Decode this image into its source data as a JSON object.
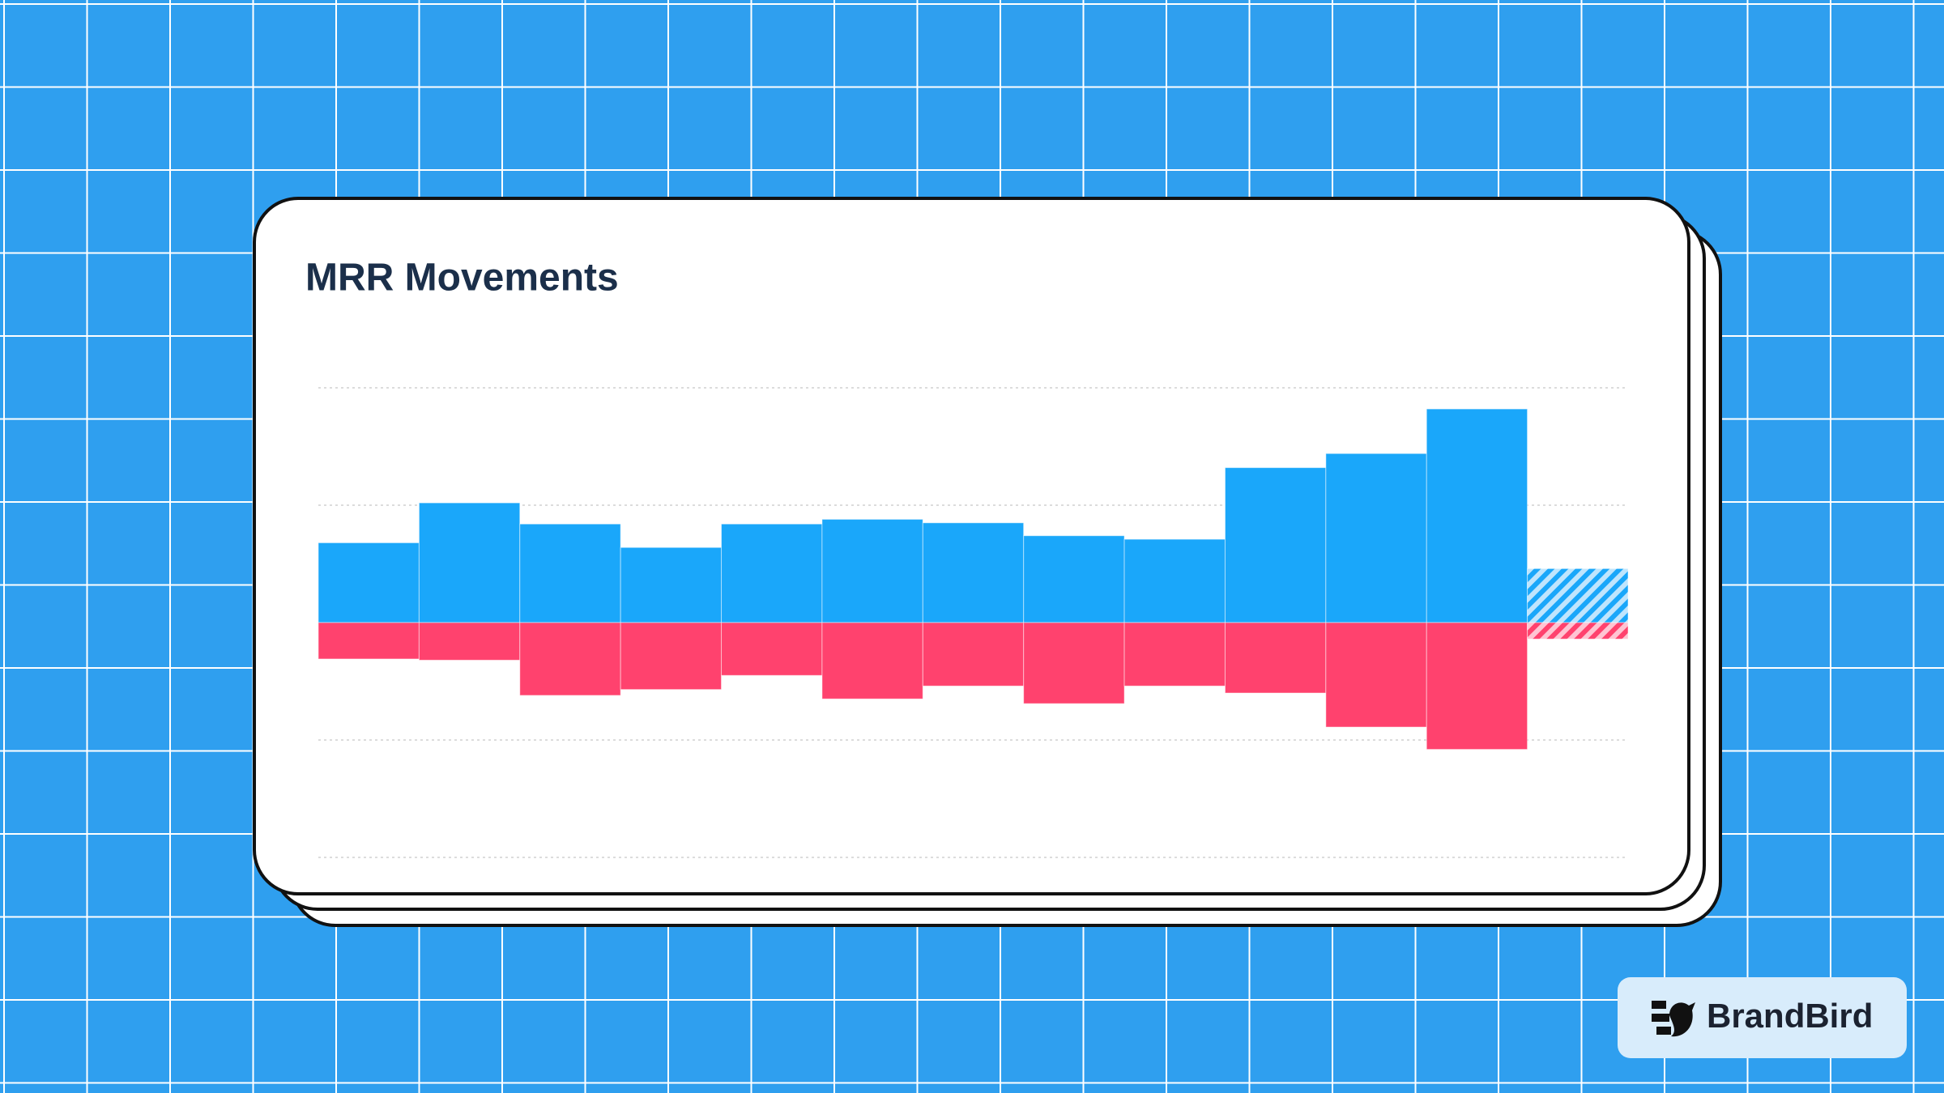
{
  "chart_data": {
    "type": "bar",
    "title": "MRR Movements",
    "categories": [
      null,
      null,
      null,
      null,
      null,
      null,
      null,
      null,
      null,
      null,
      null,
      null,
      null
    ],
    "series": [
      {
        "color": "#1aa7fa",
        "values": [
          0.68,
          1.02,
          0.84,
          0.64,
          0.84,
          0.88,
          0.85,
          0.74,
          0.71,
          1.32,
          1.44,
          1.82,
          null
        ]
      },
      {
        "color": "#ff426e",
        "values": [
          -0.31,
          -0.32,
          -0.62,
          -0.57,
          -0.45,
          -0.65,
          -0.54,
          -0.69,
          -0.54,
          -0.6,
          -0.89,
          -1.08,
          null
        ]
      },
      {
        "color": "#1aa7fa",
        "pattern": "hatch",
        "values": [
          null,
          null,
          null,
          null,
          null,
          null,
          null,
          null,
          null,
          null,
          null,
          null,
          0.46
        ]
      },
      {
        "color": "#ff426e",
        "pattern": "hatch",
        "values": [
          null,
          null,
          null,
          null,
          null,
          null,
          null,
          null,
          null,
          null,
          null,
          null,
          -0.14
        ]
      }
    ],
    "ylim": [
      -2,
      2
    ],
    "yticks": [
      -2,
      -1,
      0,
      1,
      2
    ],
    "grid": true
  },
  "watermark": {
    "text": "BrandBird"
  }
}
